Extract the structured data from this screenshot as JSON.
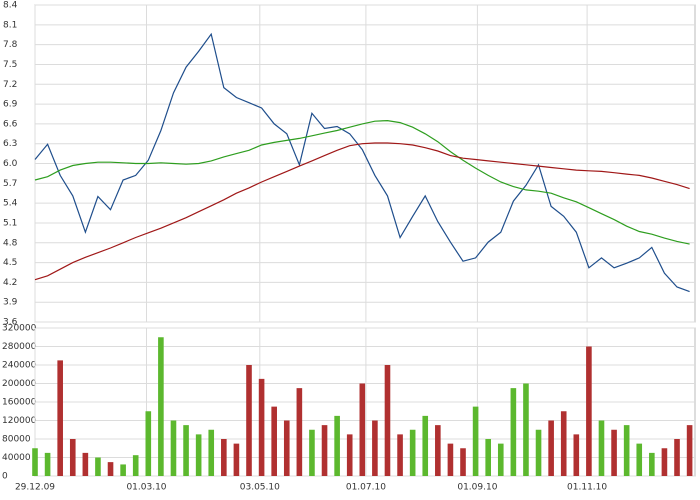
{
  "chart_data": {
    "type": "line",
    "x": [
      "2009-12-29",
      "2010-01-05",
      "2010-01-12",
      "2010-01-19",
      "2010-01-26",
      "2010-02-02",
      "2010-02-09",
      "2010-02-16",
      "2010-02-23",
      "2010-03-02",
      "2010-03-09",
      "2010-03-16",
      "2010-03-23",
      "2010-03-30",
      "2010-04-06",
      "2010-04-13",
      "2010-04-20",
      "2010-04-27",
      "2010-05-04",
      "2010-05-11",
      "2010-05-18",
      "2010-05-25",
      "2010-06-01",
      "2010-06-08",
      "2010-06-15",
      "2010-06-22",
      "2010-06-29",
      "2010-07-06",
      "2010-07-13",
      "2010-07-20",
      "2010-07-27",
      "2010-08-03",
      "2010-08-10",
      "2010-08-17",
      "2010-08-24",
      "2010-08-31",
      "2010-09-07",
      "2010-09-14",
      "2010-09-21",
      "2010-09-28",
      "2010-10-05",
      "2010-10-12",
      "2010-10-19",
      "2010-10-26",
      "2010-11-02",
      "2010-11-09",
      "2010-11-16",
      "2010-11-23",
      "2010-11-30",
      "2010-12-07",
      "2010-12-14",
      "2010-12-21",
      "2010-12-28"
    ],
    "xlim": [
      "2009-12-29",
      "2010-12-31"
    ],
    "xticks": [
      {
        "value": "2009-12-29",
        "label": "29.12.09"
      },
      {
        "value": "2010-03-01",
        "label": "01.03.10"
      },
      {
        "value": "2010-05-03",
        "label": "03.05.10"
      },
      {
        "value": "2010-07-01",
        "label": "01.07.10"
      },
      {
        "value": "2010-09-01",
        "label": "01.09.10"
      },
      {
        "value": "2010-11-01",
        "label": "01.11.10"
      }
    ],
    "ylim": [
      3.6,
      8.4
    ],
    "yticks": [
      3.6,
      3.9,
      4.2,
      4.5,
      4.8,
      5.1,
      5.4,
      5.7,
      {
        "value": 6,
        "label": "6.0"
      },
      6.3,
      6.6,
      6.9,
      7.2,
      7.5,
      7.8,
      8.1,
      8.4
    ],
    "grid": true,
    "series": [
      {
        "color": "#1f4e8c",
        "values": [
          6.06,
          6.29,
          5.82,
          5.51,
          4.96,
          5.5,
          5.3,
          5.75,
          5.82,
          6.05,
          6.5,
          7.07,
          7.46,
          7.7,
          7.96,
          7.15,
          7.0,
          6.92,
          6.84,
          6.6,
          6.45,
          5.98,
          6.76,
          6.53,
          6.56,
          6.45,
          6.21,
          5.82,
          5.51,
          4.88,
          5.2,
          5.51,
          5.12,
          4.81,
          4.52,
          4.57,
          4.81,
          4.96,
          5.43,
          5.67,
          5.98,
          5.35,
          5.2,
          4.96,
          4.42,
          4.57,
          4.42,
          4.49,
          4.57,
          4.73,
          4.34,
          4.13,
          4.06
        ]
      },
      {
        "color": "#2e9e1f",
        "values": [
          5.75,
          5.8,
          5.9,
          5.97,
          6.0,
          6.02,
          6.02,
          6.01,
          6.0,
          6.0,
          6.01,
          6.0,
          5.99,
          6.0,
          6.04,
          6.1,
          6.15,
          6.2,
          6.28,
          6.32,
          6.35,
          6.38,
          6.42,
          6.46,
          6.5,
          6.55,
          6.6,
          6.64,
          6.65,
          6.62,
          6.55,
          6.45,
          6.33,
          6.18,
          6.05,
          5.93,
          5.82,
          5.72,
          5.65,
          5.6,
          5.58,
          5.55,
          5.48,
          5.42,
          5.33,
          5.24,
          5.15,
          5.05,
          4.97,
          4.93,
          4.87,
          4.82,
          4.78
        ]
      },
      {
        "color": "#a01818",
        "values": [
          4.24,
          4.3,
          4.4,
          4.5,
          4.58,
          4.65,
          4.72,
          4.8,
          4.88,
          4.95,
          5.02,
          5.1,
          5.18,
          5.27,
          5.36,
          5.45,
          5.55,
          5.63,
          5.72,
          5.8,
          5.88,
          5.96,
          6.04,
          6.12,
          6.2,
          6.27,
          6.3,
          6.31,
          6.31,
          6.3,
          6.28,
          6.24,
          6.19,
          6.12,
          6.08,
          6.06,
          6.04,
          6.02,
          6.0,
          5.98,
          5.96,
          5.94,
          5.92,
          5.9,
          5.89,
          5.88,
          5.86,
          5.84,
          5.82,
          5.78,
          5.73,
          5.68,
          5.62
        ]
      }
    ],
    "volume": {
      "type": "bar",
      "up_color": "#5cb82e",
      "down_color": "#b03030",
      "values": [
        60000,
        50000,
        250000,
        80000,
        50000,
        40000,
        30000,
        25000,
        45000,
        140000,
        300000,
        120000,
        110000,
        90000,
        100000,
        80000,
        70000,
        240000,
        210000,
        150000,
        120000,
        190000,
        100000,
        110000,
        130000,
        90000,
        200000,
        120000,
        240000,
        90000,
        100000,
        130000,
        110000,
        70000,
        60000,
        150000,
        80000,
        70000,
        190000,
        200000,
        100000,
        120000,
        140000,
        90000,
        280000,
        120000,
        100000,
        110000,
        70000,
        50000,
        60000,
        80000,
        110000
      ],
      "ylim": [
        0,
        320000
      ],
      "yticks": [
        0,
        40000,
        80000,
        120000,
        160000,
        200000,
        240000,
        280000,
        320000
      ]
    }
  }
}
